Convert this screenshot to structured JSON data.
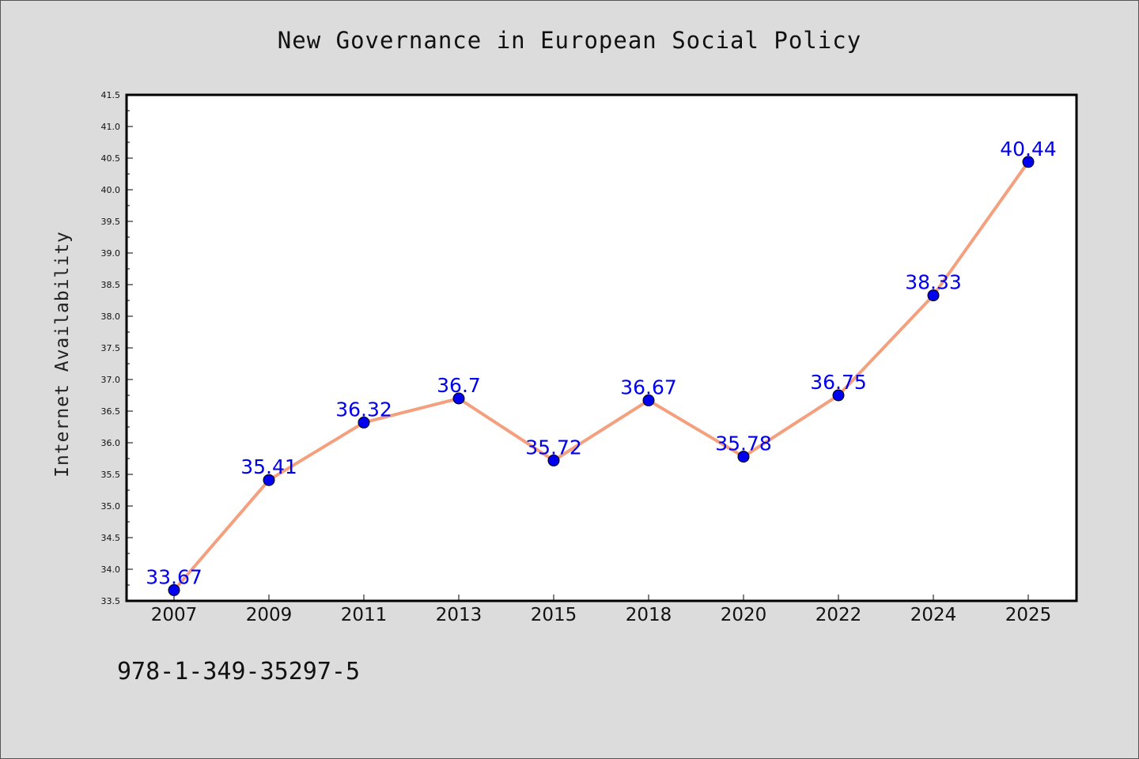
{
  "chart_data": {
    "type": "line",
    "title": "New Governance in European Social Policy",
    "xlabel": "",
    "ylabel": "Internet Availability",
    "categories": [
      "2007",
      "2009",
      "2011",
      "2013",
      "2015",
      "2018",
      "2020",
      "2022",
      "2024",
      "2025"
    ],
    "values": [
      33.67,
      35.41,
      36.32,
      36.7,
      35.72,
      36.67,
      35.78,
      36.75,
      38.33,
      40.44
    ],
    "data_labels": [
      "33.67",
      "35.41",
      "36.32",
      "36.7",
      "35.72",
      "36.67",
      "35.78",
      "36.75",
      "38.33",
      "40.44"
    ],
    "ylim": [
      33.5,
      41.5
    ],
    "yticks": [
      "33.5",
      "34.0",
      "34.5",
      "35.0",
      "35.5",
      "36.0",
      "36.5",
      "37.0",
      "37.5",
      "38.0",
      "38.5",
      "39.0",
      "39.5",
      "40.0",
      "40.5",
      "41.0",
      "41.5"
    ],
    "grid": false,
    "line_color": "#f4a07e",
    "marker_color": "#0000ee",
    "label_color": "#0000ee"
  },
  "footer": {
    "isbn": "978-1-349-35297-5"
  }
}
